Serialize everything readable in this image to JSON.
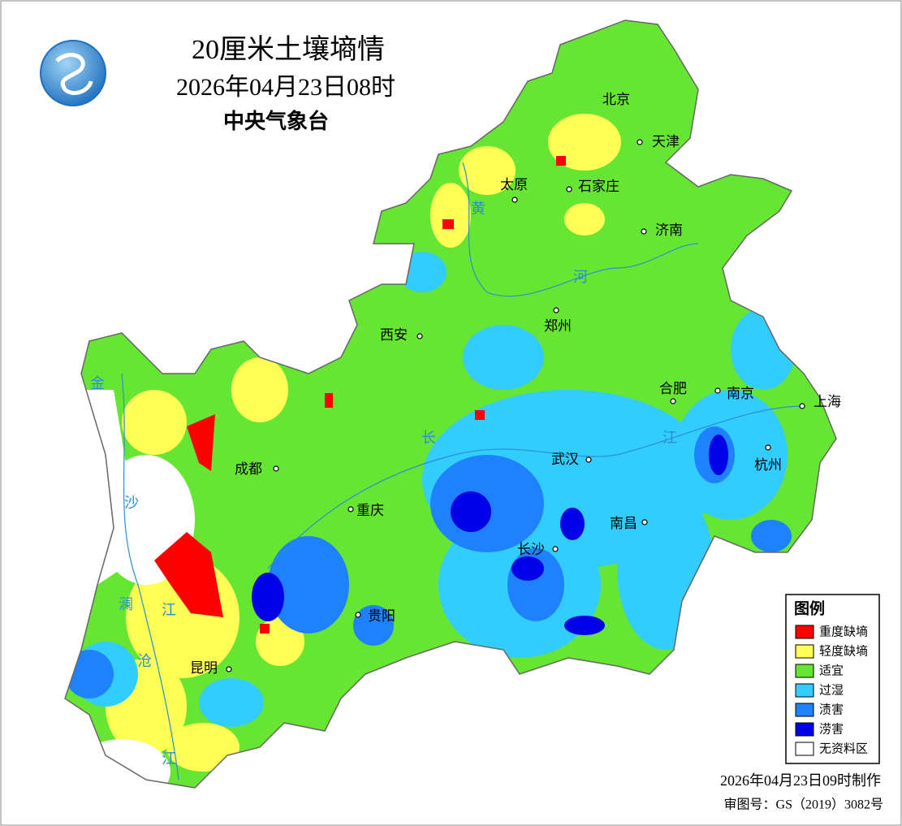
{
  "header": {
    "title": "20厘米土壤墒情",
    "time": "2026年04月23日08时",
    "agency": "中央气象台"
  },
  "cities": [
    "北京",
    "天津",
    "太原",
    "石家庄",
    "济南",
    "西安",
    "郑州",
    "合肥",
    "南京",
    "上海",
    "成都",
    "武汉",
    "杭州",
    "重庆",
    "南昌",
    "长沙",
    "贵阳",
    "昆明"
  ],
  "rivers": [
    "黄",
    "河",
    "长",
    "江",
    "金",
    "沙",
    "澜",
    "江",
    "沧",
    "江"
  ],
  "legend": {
    "title": "图例",
    "items": [
      "重度缺墒",
      "轻度缺墒",
      "适宜",
      "过湿",
      "渍害",
      "涝害",
      "无资料区"
    ]
  },
  "footer": {
    "made": "2026年04月23日09时制作",
    "review": "审图号：GS（2019）3082号"
  }
}
